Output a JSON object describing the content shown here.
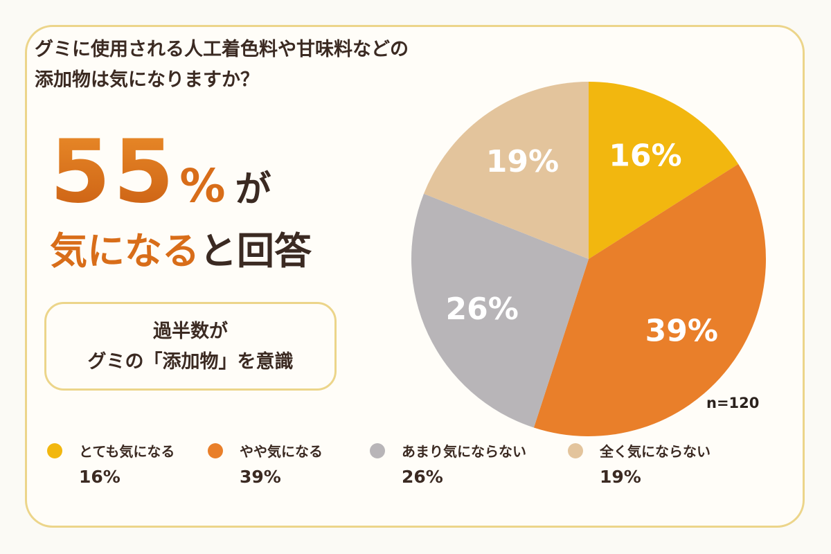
{
  "question": {
    "line1": "グミに使用される人工着色料や甘味料などの",
    "line2": "添加物は気になりますか？"
  },
  "headline": {
    "number": "55",
    "percent_sign": "%",
    "particle": "が",
    "accent_text": "気になる",
    "rest_text": "と回答"
  },
  "callout": {
    "line1": "過半数が",
    "line2": "グミの「添加物」を意識"
  },
  "sample_size": "n=120",
  "chart_data": {
    "type": "pie",
    "categories": [
      "とても気になる",
      "やや気になる",
      "あまり気にならない",
      "全く気にならない"
    ],
    "values": [
      16,
      39,
      26,
      19
    ],
    "slice_labels": [
      "16%",
      "39%",
      "26%",
      "19%"
    ],
    "colors": [
      "#f2b70f",
      "#e97f2a",
      "#b8b5b8",
      "#e3c49c"
    ],
    "start": "top",
    "direction": "clockwise",
    "legend_position": "bottom"
  },
  "legend": [
    {
      "label": "とても気になる",
      "value": "16%",
      "color": "#f2b70f"
    },
    {
      "label": "やや気になる",
      "value": "39%",
      "color": "#e97f2a"
    },
    {
      "label": "あまり気にならない",
      "value": "26%",
      "color": "#b8b5b8"
    },
    {
      "label": "全く気にならない",
      "value": "19%",
      "color": "#e3c49c"
    }
  ]
}
